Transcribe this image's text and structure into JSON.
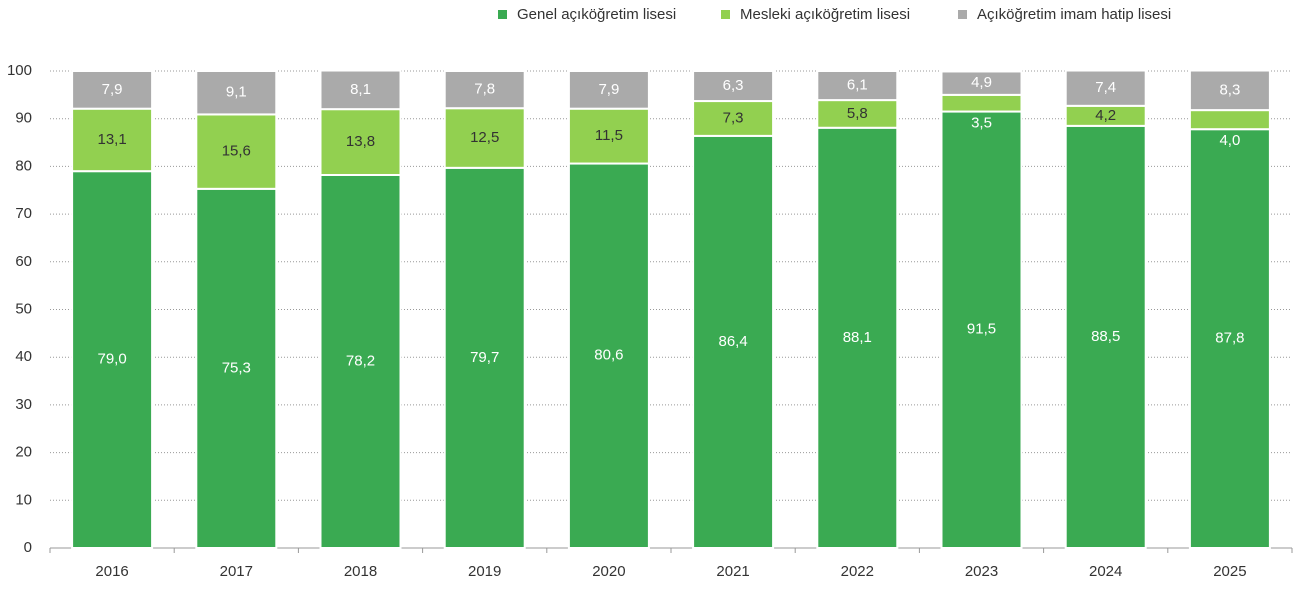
{
  "chart_data": {
    "type": "stacked_bar",
    "categories": [
      "2016",
      "2017",
      "2018",
      "2019",
      "2020",
      "2021",
      "2022",
      "2023",
      "2024",
      "2025"
    ],
    "series": [
      {
        "name": "Genel açıköğretim lisesi",
        "color": "#3aaa52",
        "values": [
          79.0,
          75.3,
          78.2,
          79.7,
          80.6,
          86.4,
          88.1,
          91.5,
          88.5,
          87.8
        ],
        "value_labels": [
          "79,0",
          "75,3",
          "78,2",
          "79,7",
          "80,6",
          "86,4",
          "88,1",
          "91,5",
          "88,5",
          "87,8"
        ]
      },
      {
        "name": "Mesleki açıköğretim lisesi",
        "color": "#92d050",
        "values": [
          13.1,
          15.6,
          13.8,
          12.5,
          11.5,
          7.3,
          5.8,
          3.5,
          4.2,
          4.0
        ],
        "value_labels": [
          "13,1",
          "15,6",
          "13,8",
          "12,5",
          "11,5",
          "7,3",
          "5,8",
          "3,5",
          "4,2",
          "4,0"
        ]
      },
      {
        "name": "Açıköğretim imam hatip lisesi",
        "color": "#aaaaaa",
        "values": [
          7.9,
          9.1,
          8.1,
          7.8,
          7.9,
          6.3,
          6.1,
          4.9,
          7.4,
          8.3
        ],
        "value_labels": [
          "7,9",
          "9,1",
          "8,1",
          "7,8",
          "7,9",
          "6,3",
          "6,1",
          "4,9",
          "7,4",
          "8,3"
        ]
      }
    ],
    "ylim": [
      0,
      100
    ],
    "yticks": [
      0,
      10,
      20,
      30,
      40,
      50,
      60,
      70,
      80,
      90,
      100
    ],
    "grid": true,
    "legend": "top-right"
  }
}
